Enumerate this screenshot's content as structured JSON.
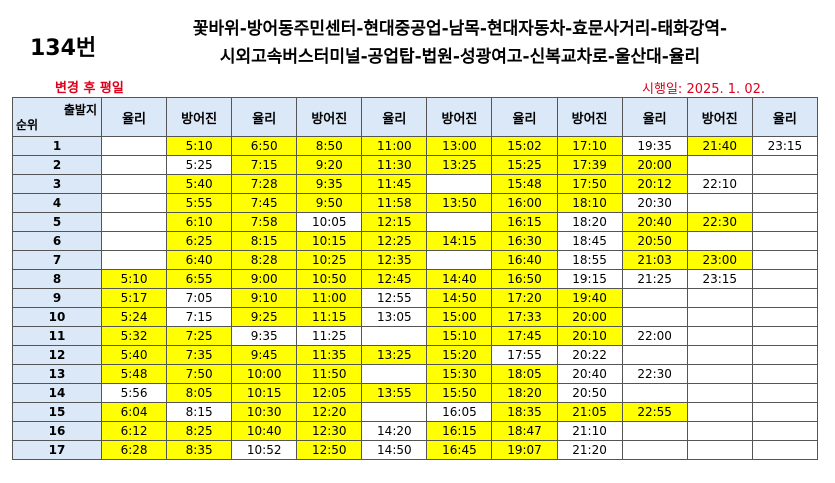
{
  "header": {
    "route_number": "134번",
    "route_line1": "꽃바위-방어동주민센터-현대중공업-남목-현대자동차-효문사거리-태화강역-",
    "route_line2": "시외고속버스터미널-공업탑-법원-성광여고-신복교차로-울산대-율리",
    "change_label": "변경 후 평일",
    "effective_date": "시행일: 2025. 1. 02."
  },
  "table": {
    "corner_top": "출발지",
    "corner_bottom": "순위",
    "columns": [
      "율리",
      "방어진",
      "율리",
      "방어진",
      "율리",
      "방어진",
      "율리",
      "방어진",
      "율리",
      "방어진",
      "율리"
    ],
    "highlight_color": "#ffff00",
    "header_color": "#dbe8f7",
    "rows": [
      {
        "num": "1",
        "cells": [
          "",
          "5:10",
          "6:50",
          "8:50",
          "11:00",
          "13:00",
          "15:02",
          "17:10",
          "19:35",
          "21:40",
          "23:15"
        ],
        "hl": [
          0,
          1,
          1,
          1,
          1,
          1,
          1,
          1,
          0,
          1,
          0
        ]
      },
      {
        "num": "2",
        "cells": [
          "",
          "5:25",
          "7:15",
          "9:20",
          "11:30",
          "13:25",
          "15:25",
          "17:39",
          "20:00",
          "",
          ""
        ],
        "hl": [
          0,
          0,
          1,
          1,
          1,
          1,
          1,
          1,
          1,
          0,
          0
        ]
      },
      {
        "num": "3",
        "cells": [
          "",
          "5:40",
          "7:28",
          "9:35",
          "11:45",
          "",
          "15:48",
          "17:50",
          "20:12",
          "22:10",
          ""
        ],
        "hl": [
          0,
          1,
          1,
          1,
          1,
          0,
          1,
          1,
          1,
          0,
          0
        ]
      },
      {
        "num": "4",
        "cells": [
          "",
          "5:55",
          "7:45",
          "9:50",
          "11:58",
          "13:50",
          "16:00",
          "18:10",
          "20:30",
          "",
          ""
        ],
        "hl": [
          0,
          1,
          1,
          1,
          1,
          1,
          1,
          1,
          0,
          0,
          0
        ]
      },
      {
        "num": "5",
        "cells": [
          "",
          "6:10",
          "7:58",
          "10:05",
          "12:15",
          "",
          "16:15",
          "18:20",
          "20:40",
          "22:30",
          ""
        ],
        "hl": [
          0,
          1,
          1,
          0,
          1,
          0,
          1,
          0,
          1,
          1,
          0
        ]
      },
      {
        "num": "6",
        "cells": [
          "",
          "6:25",
          "8:15",
          "10:15",
          "12:25",
          "14:15",
          "16:30",
          "18:45",
          "20:50",
          "",
          ""
        ],
        "hl": [
          0,
          1,
          1,
          1,
          1,
          1,
          1,
          0,
          1,
          0,
          0
        ]
      },
      {
        "num": "7",
        "cells": [
          "",
          "6:40",
          "8:28",
          "10:25",
          "12:35",
          "",
          "16:40",
          "18:55",
          "21:03",
          "23:00",
          ""
        ],
        "hl": [
          0,
          1,
          1,
          1,
          1,
          0,
          1,
          0,
          1,
          1,
          0
        ]
      },
      {
        "num": "8",
        "cells": [
          "5:10",
          "6:55",
          "9:00",
          "10:50",
          "12:45",
          "14:40",
          "16:50",
          "19:15",
          "21:25",
          "23:15",
          ""
        ],
        "hl": [
          1,
          1,
          1,
          1,
          1,
          1,
          1,
          0,
          0,
          0,
          0
        ]
      },
      {
        "num": "9",
        "cells": [
          "5:17",
          "7:05",
          "9:10",
          "11:00",
          "12:55",
          "14:50",
          "17:20",
          "19:40",
          "",
          "",
          ""
        ],
        "hl": [
          1,
          0,
          1,
          1,
          0,
          1,
          1,
          1,
          0,
          0,
          0
        ]
      },
      {
        "num": "10",
        "cells": [
          "5:24",
          "7:15",
          "9:25",
          "11:15",
          "13:05",
          "15:00",
          "17:33",
          "20:00",
          "",
          "",
          ""
        ],
        "hl": [
          1,
          0,
          1,
          1,
          0,
          1,
          1,
          1,
          0,
          0,
          0
        ]
      },
      {
        "num": "11",
        "cells": [
          "5:32",
          "7:25",
          "9:35",
          "11:25",
          "",
          "15:10",
          "17:45",
          "20:10",
          "22:00",
          "",
          ""
        ],
        "hl": [
          1,
          1,
          0,
          0,
          0,
          1,
          1,
          1,
          0,
          0,
          0
        ]
      },
      {
        "num": "12",
        "cells": [
          "5:40",
          "7:35",
          "9:45",
          "11:35",
          "13:25",
          "15:20",
          "17:55",
          "20:22",
          "",
          "",
          ""
        ],
        "hl": [
          1,
          1,
          1,
          1,
          1,
          1,
          0,
          0,
          0,
          0,
          0
        ]
      },
      {
        "num": "13",
        "cells": [
          "5:48",
          "7:50",
          "10:00",
          "11:50",
          "",
          "15:30",
          "18:05",
          "20:40",
          "22:30",
          "",
          ""
        ],
        "hl": [
          1,
          1,
          1,
          1,
          0,
          1,
          1,
          0,
          0,
          0,
          0
        ]
      },
      {
        "num": "14",
        "cells": [
          "5:56",
          "8:05",
          "10:15",
          "12:05",
          "13:55",
          "15:50",
          "18:20",
          "20:50",
          "",
          "",
          ""
        ],
        "hl": [
          0,
          1,
          1,
          1,
          1,
          1,
          1,
          0,
          0,
          0,
          0
        ]
      },
      {
        "num": "15",
        "cells": [
          "6:04",
          "8:15",
          "10:30",
          "12:20",
          "",
          "16:05",
          "18:35",
          "21:05",
          "22:55",
          "",
          ""
        ],
        "hl": [
          1,
          0,
          1,
          1,
          0,
          0,
          1,
          1,
          1,
          0,
          0
        ]
      },
      {
        "num": "16",
        "cells": [
          "6:12",
          "8:25",
          "10:40",
          "12:30",
          "14:20",
          "16:15",
          "18:47",
          "21:10",
          "",
          "",
          ""
        ],
        "hl": [
          1,
          1,
          1,
          1,
          0,
          1,
          1,
          0,
          0,
          0,
          0
        ]
      },
      {
        "num": "17",
        "cells": [
          "6:28",
          "8:35",
          "10:52",
          "12:50",
          "14:50",
          "16:45",
          "19:07",
          "21:20",
          "",
          "",
          ""
        ],
        "hl": [
          1,
          1,
          0,
          1,
          0,
          1,
          1,
          0,
          0,
          0,
          0
        ]
      }
    ]
  }
}
